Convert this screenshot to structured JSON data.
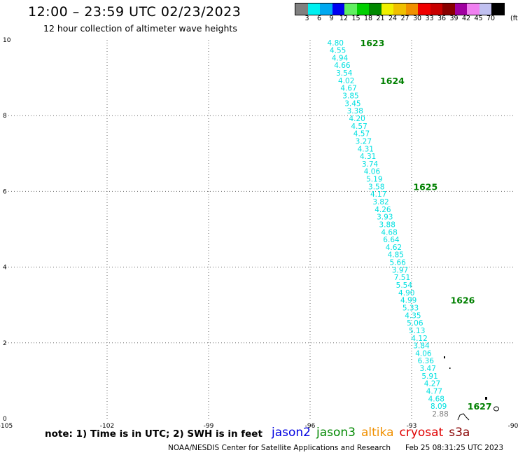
{
  "title": "12:00 – 23:59 UTC 02/23/2023",
  "subtitle": "12 hour collection of altimeter wave heights",
  "color_scale": {
    "labels": [
      "3",
      "6",
      "9",
      "12",
      "15",
      "18",
      "21",
      "24",
      "27",
      "30",
      "33",
      "36",
      "39",
      "42",
      "45",
      "70"
    ],
    "unit": "(ft)",
    "colors": [
      "#808080",
      "#00f0f0",
      "#00a8f0",
      "#0000f0",
      "#60f060",
      "#00d000",
      "#008800",
      "#f0f000",
      "#f0c000",
      "#f09000",
      "#f00000",
      "#c80000",
      "#880000",
      "#a000a0",
      "#f080f0",
      "#c0c0f0",
      "#000000"
    ]
  },
  "note": "note:  1) Time is in UTC;  2) SWH is in feet",
  "missions": [
    {
      "name": "jason2",
      "color": "#0000e0"
    },
    {
      "name": "jason3",
      "color": "#008800"
    },
    {
      "name": "altika",
      "color": "#f09000"
    },
    {
      "name": "cryosat",
      "color": "#e00000"
    },
    {
      "name": "s3a",
      "color": "#880000"
    }
  ],
  "footer_credit": "NOAA/NESDIS Center for Satellite Applications and Research",
  "footer_stamp": "Feb 25 08:31:25 UTC 2023",
  "chart_data": {
    "type": "scatter",
    "title": "",
    "xlabel": "",
    "ylabel": "",
    "xlim": [
      -105,
      -90
    ],
    "ylim": [
      0,
      10
    ],
    "x_ticks": [
      "-105",
      "-102",
      "-99",
      "-96",
      "-93",
      "-90"
    ],
    "y_ticks": [
      "0",
      "2",
      "4",
      "6",
      "8",
      "10"
    ],
    "grid": true,
    "series": [
      {
        "color": "#00e0e0",
        "points": [
          {
            "x": -95.25,
            "y": 9.93,
            "label": "4.80"
          },
          {
            "x": -95.18,
            "y": 9.73,
            "label": "4.55"
          },
          {
            "x": -95.12,
            "y": 9.53,
            "label": "4.94"
          },
          {
            "x": -95.05,
            "y": 9.33,
            "label": "4.66"
          },
          {
            "x": -94.99,
            "y": 9.13,
            "label": "3.54"
          },
          {
            "x": -94.93,
            "y": 8.93,
            "label": "4.02"
          },
          {
            "x": -94.86,
            "y": 8.73,
            "label": "4.67"
          },
          {
            "x": -94.8,
            "y": 8.53,
            "label": "3.85"
          },
          {
            "x": -94.74,
            "y": 8.33,
            "label": "3.45"
          },
          {
            "x": -94.67,
            "y": 8.13,
            "label": "3.38"
          },
          {
            "x": -94.61,
            "y": 7.93,
            "label": "4.20"
          },
          {
            "x": -94.55,
            "y": 7.73,
            "label": "4.57"
          },
          {
            "x": -94.48,
            "y": 7.53,
            "label": "4.57"
          },
          {
            "x": -94.42,
            "y": 7.33,
            "label": "3.27"
          },
          {
            "x": -94.36,
            "y": 7.13,
            "label": "4.31"
          },
          {
            "x": -94.29,
            "y": 6.93,
            "label": "4.31"
          },
          {
            "x": -94.23,
            "y": 6.73,
            "label": "3.74"
          },
          {
            "x": -94.17,
            "y": 6.53,
            "label": "4.06"
          },
          {
            "x": -94.1,
            "y": 6.33,
            "label": "5.19"
          },
          {
            "x": -94.04,
            "y": 6.13,
            "label": "3.58"
          },
          {
            "x": -93.98,
            "y": 5.93,
            "label": "4.17"
          },
          {
            "x": -93.91,
            "y": 5.73,
            "label": "3.82"
          },
          {
            "x": -93.85,
            "y": 5.53,
            "label": "4.26"
          },
          {
            "x": -93.79,
            "y": 5.33,
            "label": "3.93"
          },
          {
            "x": -93.72,
            "y": 5.13,
            "label": "3.88"
          },
          {
            "x": -93.66,
            "y": 4.93,
            "label": "4.68"
          },
          {
            "x": -93.6,
            "y": 4.73,
            "label": "6.64"
          },
          {
            "x": -93.53,
            "y": 4.53,
            "label": "4.62"
          },
          {
            "x": -93.47,
            "y": 4.33,
            "label": "4.85"
          },
          {
            "x": -93.41,
            "y": 4.13,
            "label": "5.66"
          },
          {
            "x": -93.34,
            "y": 3.93,
            "label": "3.97"
          },
          {
            "x": -93.28,
            "y": 3.73,
            "label": "7.51"
          },
          {
            "x": -93.22,
            "y": 3.53,
            "label": "5.54"
          },
          {
            "x": -93.15,
            "y": 3.33,
            "label": "4.90"
          },
          {
            "x": -93.09,
            "y": 3.13,
            "label": "4.99"
          },
          {
            "x": -93.03,
            "y": 2.93,
            "label": "5.33"
          },
          {
            "x": -92.96,
            "y": 2.73,
            "label": "4.35"
          },
          {
            "x": -92.9,
            "y": 2.53,
            "label": "5.06"
          },
          {
            "x": -92.84,
            "y": 2.33,
            "label": "5.13"
          },
          {
            "x": -92.77,
            "y": 2.13,
            "label": "4.12"
          },
          {
            "x": -92.71,
            "y": 1.93,
            "label": "3.84"
          },
          {
            "x": -92.65,
            "y": 1.73,
            "label": "4.06"
          },
          {
            "x": -92.58,
            "y": 1.53,
            "label": "6.36"
          },
          {
            "x": -92.52,
            "y": 1.33,
            "label": "3.47"
          },
          {
            "x": -92.46,
            "y": 1.13,
            "label": "5.91"
          },
          {
            "x": -92.39,
            "y": 0.93,
            "label": "4.27"
          },
          {
            "x": -92.33,
            "y": 0.73,
            "label": "4.77"
          },
          {
            "x": -92.27,
            "y": 0.53,
            "label": "4.68"
          },
          {
            "x": -92.2,
            "y": 0.33,
            "label": "8.09"
          }
        ]
      },
      {
        "color": "#808080",
        "points": [
          {
            "x": -92.15,
            "y": 0.13,
            "label": "2.88"
          }
        ]
      }
    ],
    "time_labels": [
      {
        "x": -94.52,
        "y": 9.93,
        "text": "1623"
      },
      {
        "x": -93.93,
        "y": 8.93,
        "text": "1624"
      },
      {
        "x": -92.95,
        "y": 6.13,
        "text": "1625"
      },
      {
        "x": -91.85,
        "y": 3.13,
        "text": "1626"
      },
      {
        "x": -91.35,
        "y": 0.33,
        "text": "1627"
      }
    ]
  }
}
